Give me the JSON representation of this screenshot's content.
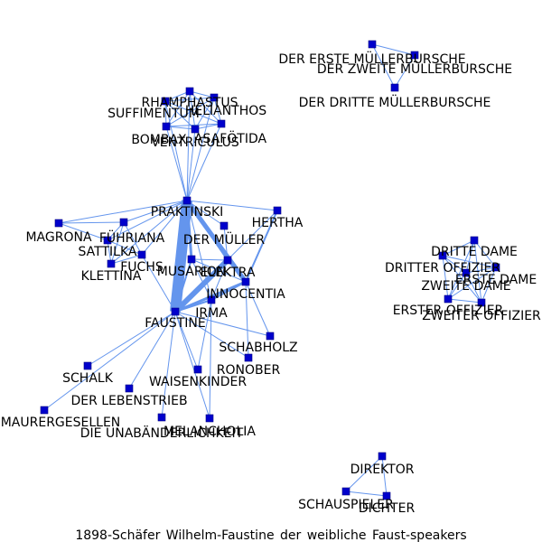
{
  "caption": "1898-Schäfer Wilhelm-Faustine der weibliche Faust-speakers",
  "colors": {
    "node": "#0000cc",
    "edge": "#6495ed",
    "label": "#000000"
  },
  "nodes": [
    {
      "id": "PRAKTINSKI",
      "label": "PRAKTINSKI"
    },
    {
      "id": "FAUSTINE",
      "label": "FAUSTINE"
    },
    {
      "id": "HERTHA",
      "label": "HERTHA"
    },
    {
      "id": "DER_MULLER",
      "label": "DER MÜLLER"
    },
    {
      "id": "MAGRONA",
      "label": "MAGRONA"
    },
    {
      "id": "FUHRIANA",
      "label": "FÜHRIANA"
    },
    {
      "id": "SATTILKA",
      "label": "SATTILKA"
    },
    {
      "id": "FUCHS",
      "label": "FUCHS"
    },
    {
      "id": "KLETTINA",
      "label": "KLETTINA"
    },
    {
      "id": "MUSARION",
      "label": "MUSARION"
    },
    {
      "id": "ELEKTRA",
      "label": "ELEKTRA"
    },
    {
      "id": "INNOCENTIA",
      "label": "INNOCENTIA"
    },
    {
      "id": "IRMA",
      "label": "IRMA"
    },
    {
      "id": "SCHABHOLZ",
      "label": "SCHABHOLZ"
    },
    {
      "id": "RONOBER",
      "label": "RONOBER"
    },
    {
      "id": "WAISENKINDER",
      "label": "WAISENKINDER"
    },
    {
      "id": "SCHALK",
      "label": "SCHALK"
    },
    {
      "id": "DER_LEBENSTRIEB",
      "label": "DER LEBENSTRIEB"
    },
    {
      "id": "MAURERGESELLEN",
      "label": "MAURERGESELLEN"
    },
    {
      "id": "DIE_UNABANDERLICHKEIT",
      "label": "DIE UNABÄNDERLICHKEIT"
    },
    {
      "id": "MELANCHOLIA",
      "label": "MELANCHOLIA"
    },
    {
      "id": "RHAMPHASTUS",
      "label": "RHAMPHASTUS"
    },
    {
      "id": "SUFFIMENTUM",
      "label": "SUFFIMENTUM"
    },
    {
      "id": "HELIANTHOS",
      "label": "HELIANTHOS"
    },
    {
      "id": "BOMBAX",
      "label": "BOMBAX"
    },
    {
      "id": "ASAFOTIDA",
      "label": "ASAFÖTIDA"
    },
    {
      "id": "VENTRICULUS",
      "label": "VENTRICULUS"
    },
    {
      "id": "DER_ERSTE_MULLERBURSCHE",
      "label": "DER ERSTE MÜLLERBURSCHE"
    },
    {
      "id": "DER_ZWEITE_MULLERBURSCHE",
      "label": "DER ZWEITE MÜLLERBURSCHE"
    },
    {
      "id": "DER_DRITTE_MULLERBURSCHE",
      "label": "DER DRITTE MÜLLERBURSCHE"
    },
    {
      "id": "DRITTE_DAME",
      "label": "DRITTE DAME"
    },
    {
      "id": "DRITTER_OFFIZIER",
      "label": "DRITTER OFFIZIER"
    },
    {
      "id": "ERSTE_DAME",
      "label": "ERSTE DAME"
    },
    {
      "id": "ZWEITE_DAME",
      "label": "ZWEITE DAME"
    },
    {
      "id": "ERSTER_OFFIZIER",
      "label": "ERSTER OFFIZIER"
    },
    {
      "id": "ZWEITER_OFFIZIER",
      "label": "ZWEITER OFFIZIER"
    },
    {
      "id": "DIREKTOR",
      "label": "DIREKTOR"
    },
    {
      "id": "SCHAUSPIELER",
      "label": "SCHAUSPIELER"
    },
    {
      "id": "DICHTER",
      "label": "DICHTER"
    }
  ],
  "edges": [
    {
      "source": "PRAKTINSKI",
      "target": "FAUSTINE",
      "weight": 12
    },
    {
      "source": "PRAKTINSKI",
      "target": "ELEKTRA",
      "weight": 2
    },
    {
      "source": "PRAKTINSKI",
      "target": "INNOCENTIA",
      "weight": 5
    },
    {
      "source": "PRAKTINSKI",
      "target": "MUSARION",
      "weight": 3
    },
    {
      "source": "PRAKTINSKI",
      "target": "HERTHA",
      "weight": 1
    },
    {
      "source": "PRAKTINSKI",
      "target": "DER_MULLER",
      "weight": 1
    },
    {
      "source": "PRAKTINSKI",
      "target": "MAGRONA",
      "weight": 1
    },
    {
      "source": "PRAKTINSKI",
      "target": "FUHRIANA",
      "weight": 1
    },
    {
      "source": "PRAKTINSKI",
      "target": "SATTILKA",
      "weight": 1
    },
    {
      "source": "PRAKTINSKI",
      "target": "FUCHS",
      "weight": 1
    },
    {
      "source": "PRAKTINSKI",
      "target": "KLETTINA",
      "weight": 1
    },
    {
      "source": "PRAKTINSKI",
      "target": "IRMA",
      "weight": 1
    },
    {
      "source": "PRAKTINSKI",
      "target": "RHAMPHASTUS",
      "weight": 1
    },
    {
      "source": "PRAKTINSKI",
      "target": "SUFFIMENTUM",
      "weight": 1
    },
    {
      "source": "PRAKTINSKI",
      "target": "HELIANTHOS",
      "weight": 1
    },
    {
      "source": "PRAKTINSKI",
      "target": "BOMBAX",
      "weight": 1
    },
    {
      "source": "PRAKTINSKI",
      "target": "ASAFOTIDA",
      "weight": 1
    },
    {
      "source": "PRAKTINSKI",
      "target": "VENTRICULUS",
      "weight": 1
    },
    {
      "source": "FAUSTINE",
      "target": "ELEKTRA",
      "weight": 6
    },
    {
      "source": "FAUSTINE",
      "target": "INNOCENTIA",
      "weight": 3
    },
    {
      "source": "FAUSTINE",
      "target": "MUSARION",
      "weight": 2
    },
    {
      "source": "FAUSTINE",
      "target": "IRMA",
      "weight": 2
    },
    {
      "source": "FAUSTINE",
      "target": "HERTHA",
      "weight": 1
    },
    {
      "source": "FAUSTINE",
      "target": "SCHABHOLZ",
      "weight": 1
    },
    {
      "source": "FAUSTINE",
      "target": "RONOBER",
      "weight": 1
    },
    {
      "source": "FAUSTINE",
      "target": "WAISENKINDER",
      "weight": 1
    },
    {
      "source": "FAUSTINE",
      "target": "SCHALK",
      "weight": 1
    },
    {
      "source": "FAUSTINE",
      "target": "DER_LEBENSTRIEB",
      "weight": 1
    },
    {
      "source": "FAUSTINE",
      "target": "MAURERGESELLEN",
      "weight": 1
    },
    {
      "source": "FAUSTINE",
      "target": "DIE_UNABANDERLICHKEIT",
      "weight": 1
    },
    {
      "source": "FAUSTINE",
      "target": "MELANCHOLIA",
      "weight": 1
    },
    {
      "source": "FAUSTINE",
      "target": "FUCHS",
      "weight": 1
    },
    {
      "source": "MAGRONA",
      "target": "FUHRIANA",
      "weight": 1
    },
    {
      "source": "MAGRONA",
      "target": "SATTILKA",
      "weight": 1
    },
    {
      "source": "FUHRIANA",
      "target": "SATTILKA",
      "weight": 1
    },
    {
      "source": "FUHRIANA",
      "target": "FUCHS",
      "weight": 1
    },
    {
      "source": "FUHRIANA",
      "target": "KLETTINA",
      "weight": 1
    },
    {
      "source": "SATTILKA",
      "target": "FUCHS",
      "weight": 1
    },
    {
      "source": "SATTILKA",
      "target": "KLETTINA",
      "weight": 1
    },
    {
      "source": "FUCHS",
      "target": "KLETTINA",
      "weight": 1
    },
    {
      "source": "MUSARION",
      "target": "ELEKTRA",
      "weight": 1
    },
    {
      "source": "MUSARION",
      "target": "INNOCENTIA",
      "weight": 1
    },
    {
      "source": "MUSARION",
      "target": "IRMA",
      "weight": 1
    },
    {
      "source": "ELEKTRA",
      "target": "INNOCENTIA",
      "weight": 2
    },
    {
      "source": "ELEKTRA",
      "target": "IRMA",
      "weight": 1
    },
    {
      "source": "INNOCENTIA",
      "target": "IRMA",
      "weight": 2
    },
    {
      "source": "INNOCENTIA",
      "target": "HERTHA",
      "weight": 2
    },
    {
      "source": "INNOCENTIA",
      "target": "SCHABHOLZ",
      "weight": 1
    },
    {
      "source": "INNOCENTIA",
      "target": "RONOBER",
      "weight": 1
    },
    {
      "source": "IRMA",
      "target": "WAISENKINDER",
      "weight": 1
    },
    {
      "source": "IRMA",
      "target": "MELANCHOLIA",
      "weight": 1
    },
    {
      "source": "DER_MULLER",
      "target": "ELEKTRA",
      "weight": 1
    },
    {
      "source": "RHAMPHASTUS",
      "target": "SUFFIMENTUM",
      "weight": 1
    },
    {
      "source": "RHAMPHASTUS",
      "target": "HELIANTHOS",
      "weight": 1
    },
    {
      "source": "RHAMPHASTUS",
      "target": "BOMBAX",
      "weight": 1
    },
    {
      "source": "RHAMPHASTUS",
      "target": "ASAFOTIDA",
      "weight": 1
    },
    {
      "source": "RHAMPHASTUS",
      "target": "VENTRICULUS",
      "weight": 1
    },
    {
      "source": "SUFFIMENTUM",
      "target": "HELIANTHOS",
      "weight": 1
    },
    {
      "source": "SUFFIMENTUM",
      "target": "BOMBAX",
      "weight": 1
    },
    {
      "source": "SUFFIMENTUM",
      "target": "ASAFOTIDA",
      "weight": 1
    },
    {
      "source": "SUFFIMENTUM",
      "target": "VENTRICULUS",
      "weight": 1
    },
    {
      "source": "HELIANTHOS",
      "target": "BOMBAX",
      "weight": 1
    },
    {
      "source": "HELIANTHOS",
      "target": "ASAFOTIDA",
      "weight": 1
    },
    {
      "source": "HELIANTHOS",
      "target": "VENTRICULUS",
      "weight": 1
    },
    {
      "source": "BOMBAX",
      "target": "ASAFOTIDA",
      "weight": 1
    },
    {
      "source": "BOMBAX",
      "target": "VENTRICULUS",
      "weight": 1
    },
    {
      "source": "ASAFOTIDA",
      "target": "VENTRICULUS",
      "weight": 1
    },
    {
      "source": "DER_ERSTE_MULLERBURSCHE",
      "target": "DER_ZWEITE_MULLERBURSCHE",
      "weight": 1
    },
    {
      "source": "DER_ERSTE_MULLERBURSCHE",
      "target": "DER_DRITTE_MULLERBURSCHE",
      "weight": 1
    },
    {
      "source": "DER_ZWEITE_MULLERBURSCHE",
      "target": "DER_DRITTE_MULLERBURSCHE",
      "weight": 1
    },
    {
      "source": "DRITTE_DAME",
      "target": "DRITTER_OFFIZIER",
      "weight": 1
    },
    {
      "source": "DRITTE_DAME",
      "target": "ERSTE_DAME",
      "weight": 1
    },
    {
      "source": "DRITTE_DAME",
      "target": "ZWEITE_DAME",
      "weight": 1
    },
    {
      "source": "DRITTE_DAME",
      "target": "ERSTER_OFFIZIER",
      "weight": 1
    },
    {
      "source": "DRITTE_DAME",
      "target": "ZWEITER_OFFIZIER",
      "weight": 1
    },
    {
      "source": "DRITTER_OFFIZIER",
      "target": "ERSTE_DAME",
      "weight": 1
    },
    {
      "source": "DRITTER_OFFIZIER",
      "target": "ZWEITE_DAME",
      "weight": 1
    },
    {
      "source": "DRITTER_OFFIZIER",
      "target": "ERSTER_OFFIZIER",
      "weight": 1
    },
    {
      "source": "DRITTER_OFFIZIER",
      "target": "ZWEITER_OFFIZIER",
      "weight": 1
    },
    {
      "source": "ERSTE_DAME",
      "target": "ZWEITE_DAME",
      "weight": 1
    },
    {
      "source": "ERSTE_DAME",
      "target": "ERSTER_OFFIZIER",
      "weight": 1
    },
    {
      "source": "ERSTE_DAME",
      "target": "ZWEITER_OFFIZIER",
      "weight": 1
    },
    {
      "source": "ZWEITE_DAME",
      "target": "ERSTER_OFFIZIER",
      "weight": 1
    },
    {
      "source": "ZWEITE_DAME",
      "target": "ZWEITER_OFFIZIER",
      "weight": 1
    },
    {
      "source": "ERSTER_OFFIZIER",
      "target": "ZWEITER_OFFIZIER",
      "weight": 1
    },
    {
      "source": "DIREKTOR",
      "target": "SCHAUSPIELER",
      "weight": 1
    },
    {
      "source": "DIREKTOR",
      "target": "DICHTER",
      "weight": 1
    },
    {
      "source": "SCHAUSPIELER",
      "target": "DICHTER",
      "weight": 1
    }
  ]
}
